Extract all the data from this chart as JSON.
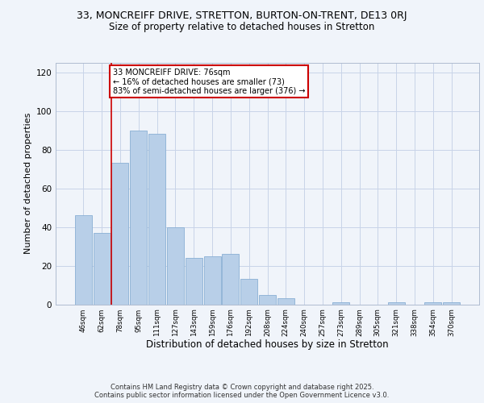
{
  "title": "33, MONCREIFF DRIVE, STRETTON, BURTON-ON-TRENT, DE13 0RJ",
  "subtitle": "Size of property relative to detached houses in Stretton",
  "xlabel": "Distribution of detached houses by size in Stretton",
  "ylabel": "Number of detached properties",
  "categories": [
    "46sqm",
    "62sqm",
    "78sqm",
    "95sqm",
    "111sqm",
    "127sqm",
    "143sqm",
    "159sqm",
    "176sqm",
    "192sqm",
    "208sqm",
    "224sqm",
    "240sqm",
    "257sqm",
    "273sqm",
    "289sqm",
    "305sqm",
    "321sqm",
    "338sqm",
    "354sqm",
    "370sqm"
  ],
  "values": [
    46,
    37,
    73,
    90,
    88,
    40,
    24,
    25,
    26,
    13,
    5,
    3,
    0,
    0,
    1,
    0,
    0,
    1,
    0,
    1,
    1
  ],
  "bar_color": "#b8cfe8",
  "bar_edge_color": "#8aafd4",
  "vline_color": "#cc0000",
  "annotation_box_text": "33 MONCREIFF DRIVE: 76sqm\n← 16% of detached houses are smaller (73)\n83% of semi-detached houses are larger (376) →",
  "annotation_box_color": "#cc0000",
  "ylim": [
    0,
    125
  ],
  "yticks": [
    0,
    20,
    40,
    60,
    80,
    100,
    120
  ],
  "background_color": "#f0f4fa",
  "grid_color": "#c8d4e8",
  "footer": "Contains HM Land Registry data © Crown copyright and database right 2025.\nContains public sector information licensed under the Open Government Licence v3.0.",
  "title_fontsize": 9,
  "subtitle_fontsize": 8.5,
  "xlabel_fontsize": 8.5,
  "ylabel_fontsize": 8
}
